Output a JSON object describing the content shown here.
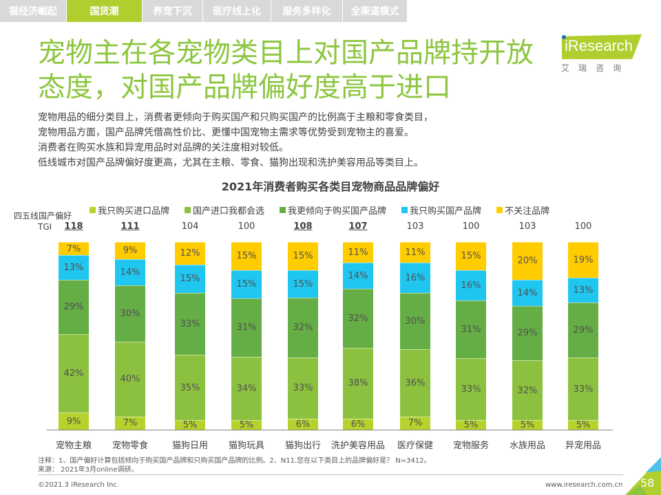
{
  "nav": {
    "tabs": [
      {
        "label": "猫经济崛起",
        "active": false
      },
      {
        "label": "国货潮",
        "active": true
      },
      {
        "label": "养宠下沉",
        "active": false
      },
      {
        "label": "医疗线上化",
        "active": false
      },
      {
        "label": "服务多样化",
        "active": false
      },
      {
        "label": "全渠道模式",
        "active": false
      }
    ]
  },
  "header": {
    "title": "宠物主在各宠物类目上对国产品牌持开放态度，对国产品牌偏好度高于进口",
    "logo_text": "iResearch",
    "logo_sub": "艾瑞咨询"
  },
  "description": [
    "宠物用品的细分类目上，消费者更倾向于购买国产和只购买国产的比例高于主粮和零食类目，",
    "宠物用品方面，国产品牌凭借高性价比、更懂中国宠物主需求等优势受到宠物主的喜爱。",
    "消费者在购买水族和异宠用品时对品牌的关注度相对较低。",
    "低线城市对国产品牌偏好度更高，尤其在主粮、零食、猫狗出现和洗护美容用品等类目上。"
  ],
  "tgi": {
    "label_line1": "四五线国产偏好",
    "label_line2": "TGI",
    "values": [
      {
        "value": "118",
        "highlight": true
      },
      {
        "value": "111",
        "highlight": true
      },
      {
        "value": "104",
        "highlight": false
      },
      {
        "value": "100",
        "highlight": false
      },
      {
        "value": "108",
        "highlight": true
      },
      {
        "value": "107",
        "highlight": true
      },
      {
        "value": "103",
        "highlight": false
      },
      {
        "value": "100",
        "highlight": false
      },
      {
        "value": "103",
        "highlight": false
      },
      {
        "value": "100",
        "highlight": false
      }
    ]
  },
  "chart_data": {
    "type": "bar",
    "stacked": true,
    "percent": true,
    "title": "2021年消费者购买各类目宠物商品品牌偏好",
    "xlabel": "",
    "ylabel": "",
    "ylim": [
      0,
      100
    ],
    "grid": false,
    "legend_position": "top",
    "categories": [
      "宠物主粮",
      "宠物零食",
      "猫狗日用",
      "猫狗玩具",
      "猫狗出行",
      "洗护美容用品",
      "医疗保健",
      "宠物服务",
      "水族用品",
      "异宠用品"
    ],
    "series": [
      {
        "name": "我只购买进口品牌",
        "color": "#b5d22d",
        "values": [
          9,
          7,
          5,
          5,
          6,
          6,
          7,
          5,
          5,
          5
        ]
      },
      {
        "name": "国产进口我都会选",
        "color": "#8cc13f",
        "values": [
          42,
          40,
          35,
          34,
          33,
          38,
          36,
          33,
          32,
          33
        ]
      },
      {
        "name": "我更倾向于购买国产品牌",
        "color": "#65ad45",
        "values": [
          29,
          30,
          33,
          31,
          32,
          32,
          30,
          31,
          29,
          29
        ]
      },
      {
        "name": "我只购买国产品牌",
        "color": "#1fc6f0",
        "values": [
          13,
          14,
          15,
          15,
          15,
          14,
          16,
          16,
          14,
          13
        ]
      },
      {
        "name": "不关注品牌",
        "color": "#ffcc00",
        "values": [
          7,
          9,
          12,
          15,
          15,
          11,
          11,
          15,
          20,
          19
        ]
      }
    ]
  },
  "footer": {
    "note": "注释：1、国产偏好计算包括倾向于购买国产品牌和只购买国产品牌的比例。2、N11.您在以下类目上的品牌偏好是？ N=3412。",
    "source": "来源： 2021年3月online调研。",
    "copyright": "©2021.3 iResearch Inc.",
    "site": "www.iresearch.com.cn",
    "page": "58"
  },
  "colors": {
    "accent": "#b1ce2f",
    "title": "#8cc63f",
    "tab_inactive": "#d9d9d9"
  }
}
